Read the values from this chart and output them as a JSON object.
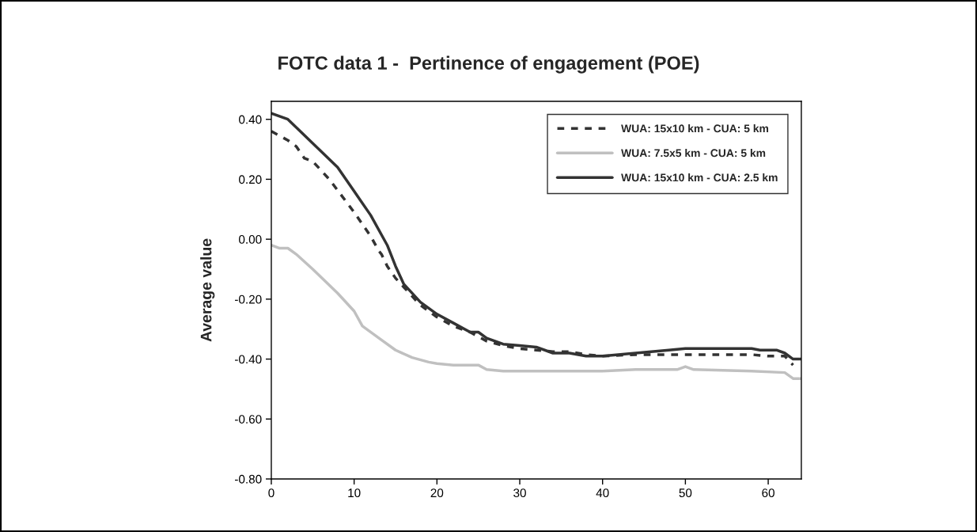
{
  "chart_data": {
    "type": "line",
    "title": "FOTC data 1 -  Pertinence of engagement (POE)",
    "ylabel": "Average value",
    "xlim": [
      0,
      64
    ],
    "xticks": [
      0,
      10,
      20,
      30,
      40,
      50,
      60
    ],
    "ylim": [
      -0.8,
      0.46
    ],
    "yticks": [
      {
        "value": -0.8,
        "label": "-0.80"
      },
      {
        "value": -0.6,
        "label": "-0.60"
      },
      {
        "value": -0.4,
        "label": "-0.40"
      },
      {
        "value": -0.2,
        "label": "-0.20"
      },
      {
        "value": 0,
        "label": "0.00"
      },
      {
        "value": 0.2,
        "label": "0.20"
      },
      {
        "value": 0.4,
        "label": "0.40"
      }
    ],
    "grid": false,
    "legend": "top right",
    "marker": "none",
    "series": [
      {
        "name": "WUA: 15x10 km - CUA: 5 km",
        "color": "#333333",
        "line_style": "dashed",
        "x": [
          0,
          2,
          3,
          4,
          5,
          7,
          10,
          12,
          13,
          13.3,
          14,
          15,
          16,
          18,
          20,
          22,
          24,
          26,
          28,
          30,
          32,
          34,
          36,
          38,
          40,
          44,
          48,
          56,
          58,
          60,
          62,
          63
        ],
        "values": [
          0.36,
          0.33,
          0.31,
          0.27,
          0.26,
          0.2,
          0.09,
          0.01,
          -0.04,
          -0.05,
          -0.09,
          -0.13,
          -0.16,
          -0.22,
          -0.26,
          -0.29,
          -0.31,
          -0.34,
          -0.355,
          -0.365,
          -0.37,
          -0.375,
          -0.375,
          -0.385,
          -0.39,
          -0.385,
          -0.385,
          -0.385,
          -0.385,
          -0.39,
          -0.39,
          -0.42
        ]
      },
      {
        "name": "WUA: 7.5x5 km - CUA: 5 km",
        "color": "#c0c0c0",
        "line_style": "solid",
        "x": [
          0,
          1,
          2,
          3,
          5,
          8,
          10,
          11,
          13,
          15,
          17,
          19,
          20,
          22,
          25,
          26,
          28,
          35,
          38,
          40,
          44,
          49,
          50,
          51,
          58,
          62,
          63,
          64
        ],
        "values": [
          -0.02,
          -0.03,
          -0.03,
          -0.05,
          -0.1,
          -0.18,
          -0.24,
          -0.29,
          -0.33,
          -0.37,
          -0.395,
          -0.41,
          -0.415,
          -0.42,
          -0.42,
          -0.435,
          -0.44,
          -0.44,
          -0.44,
          -0.44,
          -0.435,
          -0.435,
          -0.425,
          -0.435,
          -0.44,
          -0.445,
          -0.465,
          -0.465
        ]
      },
      {
        "name": "WUA: 15x10 km - CUA: 2.5 km",
        "color": "#333333",
        "line_style": "solid",
        "x": [
          0,
          2,
          5,
          8,
          10,
          12,
          14,
          15,
          16,
          18,
          20,
          22,
          24,
          25,
          26,
          28,
          30,
          32,
          34,
          36,
          38,
          40,
          44,
          48,
          50,
          55,
          58,
          59,
          61,
          62,
          63,
          64
        ],
        "values": [
          0.42,
          0.4,
          0.32,
          0.24,
          0.16,
          0.08,
          -0.02,
          -0.09,
          -0.15,
          -0.21,
          -0.25,
          -0.28,
          -0.31,
          -0.31,
          -0.33,
          -0.35,
          -0.355,
          -0.36,
          -0.38,
          -0.38,
          -0.39,
          -0.39,
          -0.38,
          -0.37,
          -0.365,
          -0.365,
          -0.365,
          -0.37,
          -0.37,
          -0.38,
          -0.4,
          -0.4
        ]
      }
    ]
  }
}
